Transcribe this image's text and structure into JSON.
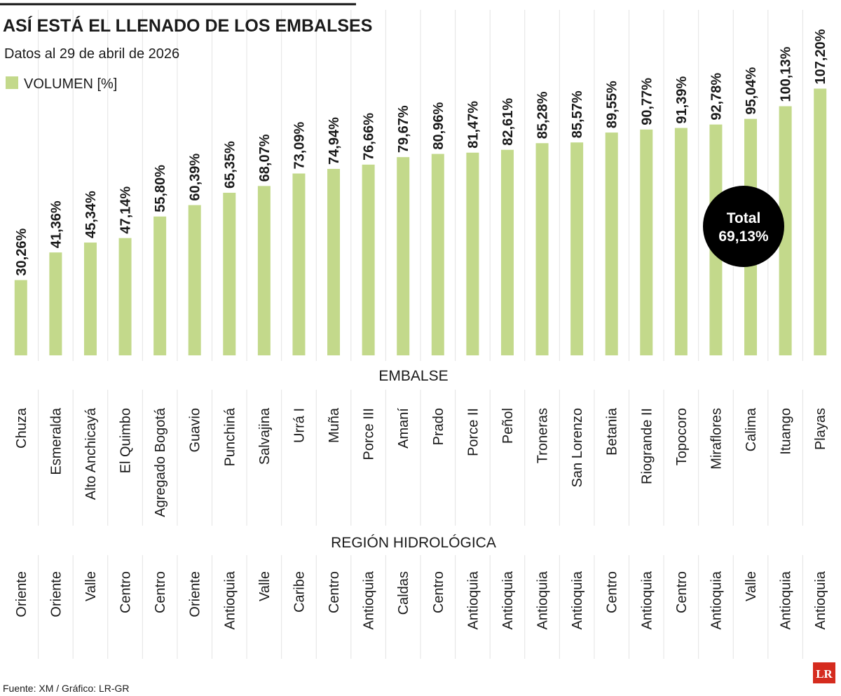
{
  "chart_data": {
    "type": "bar",
    "title": "ASÍ ESTÁ EL LLENADO DE LOS EMBALSES",
    "subtitle": "Datos al 29 de abril de 2026",
    "x_label": "EMBALSE",
    "region_label": "REGIÓN HIDROLÓGICA",
    "categories": [
      "Chuza",
      "Esmeralda",
      "Alto Anchicayá",
      "El Quimbo",
      "Agregado Bogotá",
      "Guavio",
      "Punchiná",
      "Salvajina",
      "Urrá I",
      "Muña",
      "Porce III",
      "Amaní",
      "Prado",
      "Porce II",
      "Peñol",
      "Troneras",
      "San Lorenzo",
      "Betania",
      "Riogrande II",
      "Topocoro",
      "Miraflores",
      "Calima",
      "Ituango",
      "Playas"
    ],
    "regions": [
      "Oriente",
      "Oriente",
      "Valle",
      "Centro",
      "Centro",
      "Oriente",
      "Antioquia",
      "Valle",
      "Caribe",
      "Centro",
      "Antioquia",
      "Caldas",
      "Centro",
      "Antioquia",
      "Antioquia",
      "Antioquia",
      "Antioquia",
      "Centro",
      "Antioquia",
      "Centro",
      "Antioquia",
      "Valle",
      "Antioquia",
      "Antioquia"
    ],
    "series": [
      {
        "name": "VOLUMEN [%]",
        "color": "#c3d98b",
        "values": [
          30.26,
          41.36,
          45.34,
          47.14,
          55.8,
          60.39,
          65.35,
          68.07,
          73.09,
          74.94,
          76.66,
          79.67,
          80.96,
          81.47,
          82.61,
          85.28,
          85.57,
          89.55,
          90.77,
          91.39,
          92.78,
          95.04,
          100.13,
          107.2
        ],
        "value_labels": [
          "30,26%",
          "41,36%",
          "45,34%",
          "47,14%",
          "55,80%",
          "60,39%",
          "65,35%",
          "68,07%",
          "73,09%",
          "74,94%",
          "76,66%",
          "79,67%",
          "80,96%",
          "81,47%",
          "82,61%",
          "85,28%",
          "85,57%",
          "89,55%",
          "90,77%",
          "91,39%",
          "92,78%",
          "95,04%",
          "100,13%",
          "107,20%"
        ]
      }
    ],
    "total_label": "Total",
    "total_value": 69.13,
    "total_value_label": "69,13%",
    "source": "Fuente: XM / Gráfico: LR-GR",
    "logo": "LR"
  }
}
